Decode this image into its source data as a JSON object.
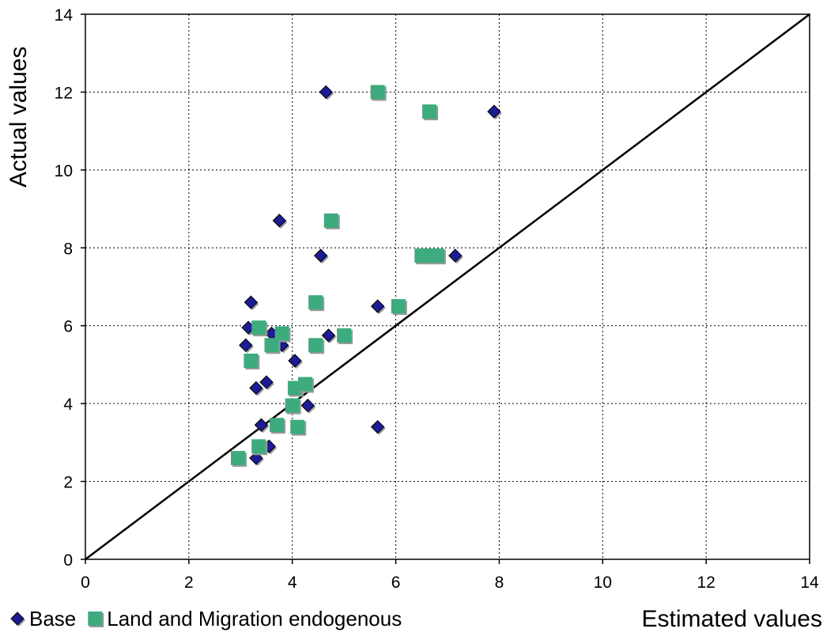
{
  "chart_data": {
    "type": "scatter",
    "x_label": "Estimated values",
    "y_label": "Actual values",
    "xlim": [
      0,
      14
    ],
    "ylim": [
      0,
      14
    ],
    "xticks": [
      0,
      2,
      4,
      6,
      8,
      10,
      12,
      14
    ],
    "yticks": [
      0,
      2,
      4,
      6,
      8,
      10,
      12,
      14
    ],
    "grid": true,
    "diagonal": true,
    "series": [
      {
        "name": "Base",
        "color": "#1c1c94",
        "marker": "diamond",
        "x": [
          4.65,
          7.9,
          3.75,
          4.55,
          7.15,
          3.2,
          5.65,
          3.15,
          3.6,
          3.1,
          3.8,
          4.7,
          4.05,
          3.5,
          3.3,
          4.3,
          3.4,
          5.65,
          3.55,
          3.3
        ],
        "values": [
          12.0,
          11.5,
          8.7,
          7.8,
          7.8,
          6.6,
          6.5,
          5.95,
          5.8,
          5.5,
          5.5,
          5.75,
          5.1,
          4.55,
          4.4,
          3.95,
          3.45,
          3.4,
          2.9,
          2.6
        ]
      },
      {
        "name": "Land and Migration endogenous",
        "color": "#3dab7e",
        "marker": "square",
        "x": [
          5.65,
          6.65,
          4.75,
          6.5,
          6.65,
          6.8,
          4.45,
          6.05,
          3.35,
          3.8,
          3.6,
          4.45,
          5.0,
          3.2,
          4.05,
          4.25,
          4.0,
          3.7,
          4.1,
          3.35,
          2.95
        ],
        "values": [
          12.0,
          11.5,
          8.7,
          7.8,
          7.8,
          7.8,
          6.6,
          6.5,
          5.95,
          5.8,
          5.5,
          5.5,
          5.75,
          5.1,
          4.4,
          4.5,
          3.95,
          3.45,
          3.4,
          2.9,
          2.6
        ]
      }
    ]
  }
}
